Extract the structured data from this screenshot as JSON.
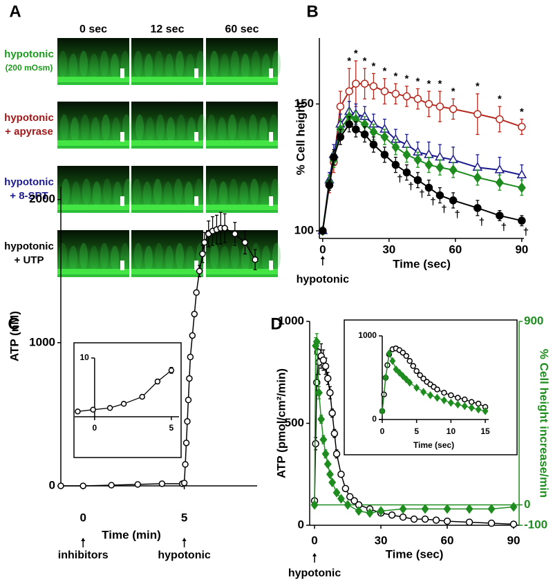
{
  "figure_labels": [
    "A",
    "B",
    "C",
    "D"
  ],
  "image_panel": {
    "columns": [
      "0 sec",
      "12 sec",
      "60 sec"
    ],
    "rows": [
      {
        "lines": [
          "hypotonic",
          "(200 mOsm)"
        ],
        "color": "#1e9a1e"
      },
      {
        "lines": [
          "hypotonic",
          "+ apyrase"
        ],
        "color": "#a01818"
      },
      {
        "lines": [
          "hypotonic",
          "+ 8-SPT"
        ],
        "color": "#1a1a8c"
      },
      {
        "lines": [
          "hypotonic",
          "+ UTP"
        ],
        "color": "#000000"
      }
    ]
  },
  "chart_data": [
    {
      "type": "line",
      "ylabel": "% Cell height",
      "xlabel": "Time (sec)",
      "xlim": [
        -1.5,
        91
      ],
      "ylim": [
        97,
        176
      ],
      "xticks": [
        0,
        30,
        60,
        90
      ],
      "yticks": [
        100,
        150
      ],
      "annotations": [
        {
          "x": 0,
          "label": "hypotonic"
        }
      ],
      "x": [
        0,
        3,
        5,
        8,
        12,
        15,
        19,
        23,
        28,
        33,
        38,
        43,
        48,
        53,
        59,
        70,
        80,
        90
      ],
      "series": [
        {
          "color": "#b5281e",
          "marker": "open-circle",
          "values": [
            100,
            118,
            127,
            149,
            155,
            158,
            158,
            157,
            155,
            154,
            153,
            152,
            150,
            149,
            148,
            146,
            144,
            141
          ],
          "errors": [
            0,
            3,
            4,
            6,
            9,
            9,
            6,
            5,
            5,
            4,
            4,
            4,
            5,
            6,
            4,
            8,
            5,
            3
          ]
        },
        {
          "color": "#1a1a8c",
          "marker": "open-triangle",
          "values": [
            100,
            120,
            130,
            142,
            147,
            146,
            145,
            142,
            140,
            136,
            134,
            131,
            130,
            129,
            128,
            125,
            124,
            122
          ],
          "errors": [
            0,
            3,
            4,
            4,
            4,
            4,
            4,
            4,
            4,
            4,
            4,
            4,
            5,
            5,
            5,
            5,
            5,
            4
          ]
        },
        {
          "color": "#1e8c1e",
          "marker": "filled-diamond",
          "values": [
            100,
            119,
            128,
            140,
            145,
            144,
            142,
            139,
            137,
            133,
            130,
            128,
            126,
            125,
            124,
            121,
            119,
            117
          ],
          "errors": [
            0,
            3,
            3,
            4,
            3,
            3,
            3,
            3,
            3,
            3,
            3,
            3,
            3,
            3,
            3,
            3,
            3,
            3
          ]
        },
        {
          "color": "#000000",
          "marker": "filled-circle",
          "values": [
            100,
            118,
            129,
            137,
            142,
            140,
            138,
            134,
            130,
            126,
            123,
            120,
            117,
            114,
            112,
            109,
            106,
            104
          ],
          "errors": [
            0,
            2,
            3,
            3,
            3,
            3,
            3,
            3,
            3,
            3,
            3,
            3,
            3,
            3,
            3,
            3,
            2,
            2
          ]
        }
      ],
      "significance": [
        {
          "symbol": "*",
          "series": 0,
          "position": "above",
          "x": [
            12,
            15,
            19,
            23,
            28,
            33,
            38,
            43,
            48,
            53,
            59,
            70,
            80,
            90
          ]
        },
        {
          "symbol": "†",
          "series": 3,
          "position": "below",
          "x": [
            33,
            38,
            43,
            48,
            53,
            59,
            70,
            80,
            90
          ]
        }
      ]
    },
    {
      "type": "line",
      "ylabel": "ATP (nM)",
      "xlabel": "Time (min)",
      "xlim": [
        -1.1,
        8.6
      ],
      "ylim": [
        0,
        2090
      ],
      "xticks": [
        0,
        5
      ],
      "yticks": [
        0,
        1000,
        2000
      ],
      "annotations": [
        {
          "x": 0,
          "label": "inhibitors"
        },
        {
          "x": 5,
          "label": "hypotonic"
        }
      ],
      "color": "#000000",
      "marker": "open-circle",
      "x": [
        -1.1,
        0,
        1.4,
        2.7,
        3.9,
        4.9,
        5.0,
        5.05,
        5.1,
        5.15,
        5.2,
        5.25,
        5.3,
        5.4,
        5.5,
        5.6,
        5.75,
        5.9,
        6.0,
        6.2,
        6.4,
        6.6,
        6.8,
        7.0,
        7.5,
        8.0,
        8.5
      ],
      "values": [
        0,
        0,
        5,
        10,
        15,
        15,
        20,
        150,
        300,
        450,
        600,
        750,
        900,
        1050,
        1200,
        1350,
        1500,
        1620,
        1700,
        1760,
        1780,
        1790,
        1800,
        1800,
        1760,
        1700,
        1580
      ],
      "errors": [
        0,
        0,
        0,
        0,
        0,
        0,
        0,
        0,
        0,
        0,
        0,
        0,
        0,
        0,
        0,
        0,
        40,
        60,
        70,
        90,
        100,
        100,
        110,
        100,
        80,
        80,
        70
      ]
    },
    {
      "type": "line",
      "xlim": [
        -1.3,
        5.5
      ],
      "ylim": [
        0,
        10
      ],
      "xticks": [
        0,
        5
      ],
      "yticks": [
        10
      ],
      "color": "#000000",
      "marker": "open-circle",
      "x": [
        -1.1,
        -0.1,
        1,
        1.9,
        3.1,
        4.1,
        5
      ],
      "values": [
        0.9,
        1.2,
        1.5,
        2.2,
        3.4,
        6.0,
        7.9
      ],
      "errors": [
        0,
        0,
        0,
        0,
        0,
        0.4,
        0.5
      ]
    },
    {
      "type": "line",
      "ylabel": "ATP (pmol/cm²/min)",
      "y2label": "% Cell height increase/min",
      "xlabel": "Time (sec)",
      "xlim": [
        -2.2,
        92.5
      ],
      "ylim": [
        0,
        1000
      ],
      "y2lim": [
        -100,
        900
      ],
      "xticks": [
        0,
        30,
        60,
        90
      ],
      "yticks": [
        0,
        500,
        1000
      ],
      "y2ticks": [
        -100,
        0,
        900
      ],
      "y2_color": "#1e8c1e",
      "annotations": [
        {
          "x": 0,
          "label": "hypotonic"
        }
      ],
      "reference_lines": [
        {
          "axis": "y2",
          "value": 0,
          "color": "#1e8c1e"
        }
      ],
      "series": [
        {
          "color": "#000000",
          "marker": "open-circle",
          "x": [
            0,
            0.5,
            1,
            1.5,
            2,
            3,
            4,
            5,
            6,
            7,
            8,
            9,
            10,
            12,
            14,
            16,
            18,
            20,
            25,
            30,
            35,
            40,
            45,
            50,
            55,
            60,
            70,
            80,
            90
          ],
          "values": [
            120,
            400,
            700,
            850,
            800,
            830,
            810,
            780,
            720,
            650,
            550,
            450,
            350,
            250,
            180,
            140,
            120,
            100,
            80,
            60,
            50,
            40,
            30,
            30,
            25,
            20,
            15,
            10,
            5
          ],
          "errors": [
            0,
            30,
            40,
            50,
            60,
            60,
            50,
            40,
            30,
            30,
            20,
            20,
            20,
            10,
            10,
            10,
            10,
            10,
            5,
            5,
            5,
            5,
            5,
            5,
            5,
            5,
            5,
            5,
            5
          ]
        },
        {
          "color": "#1e8c1e",
          "marker": "filled-diamond",
          "axis": "y2",
          "x": [
            0,
            0.5,
            1,
            2,
            3,
            4,
            5,
            6,
            7,
            8,
            10,
            12,
            15,
            20,
            25,
            30,
            40,
            50,
            60,
            70,
            80,
            90
          ],
          "values": [
            0,
            780,
            800,
            550,
            420,
            320,
            250,
            200,
            150,
            110,
            60,
            30,
            0,
            -30,
            -40,
            -30,
            -20,
            -20,
            -20,
            -20,
            -20,
            -10
          ],
          "errors": [
            0,
            40,
            40,
            30,
            20,
            20,
            20,
            10,
            10,
            10,
            10,
            10,
            10,
            10,
            10,
            10,
            10,
            10,
            10,
            10,
            10,
            10
          ]
        }
      ]
    },
    {
      "type": "line",
      "xlabel": "Time (sec)",
      "xlim": [
        -0.5,
        15.5
      ],
      "ylim": [
        0,
        1000
      ],
      "xticks": [
        0,
        5,
        10,
        15
      ],
      "yticks": [
        0,
        1000
      ],
      "series": [
        {
          "color": "#000000",
          "marker": "open-circle",
          "x": [
            0,
            0.25,
            0.5,
            0.75,
            1,
            1.5,
            2,
            2.5,
            3,
            3.5,
            4,
            4.5,
            5,
            5.5,
            6,
            6.5,
            7,
            7.5,
            8,
            9,
            10,
            11,
            12,
            13,
            14,
            15
          ],
          "values": [
            100,
            300,
            500,
            650,
            780,
            840,
            850,
            830,
            800,
            760,
            700,
            640,
            580,
            530,
            490,
            450,
            420,
            390,
            360,
            320,
            290,
            260,
            240,
            210,
            190,
            150
          ]
        },
        {
          "color": "#1e8c1e",
          "marker": "filled-diamond",
          "x": [
            0,
            0.5,
            1,
            1.5,
            2,
            2.5,
            3,
            3.5,
            4,
            5,
            6,
            7,
            8,
            9,
            10,
            11,
            12,
            13,
            14,
            15
          ],
          "values": [
            100,
            500,
            790,
            700,
            600,
            560,
            520,
            480,
            440,
            380,
            330,
            290,
            260,
            230,
            200,
            180,
            160,
            140,
            120,
            100
          ]
        }
      ]
    }
  ]
}
